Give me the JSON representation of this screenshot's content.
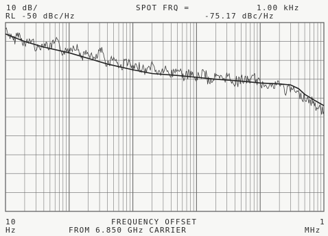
{
  "header": {
    "scale": "10 dB/",
    "marker_label": "SPOT FRQ =",
    "marker_freq": "1.00 kHz",
    "ref_level": "RL -50 dBc/Hz",
    "marker_value": "-75.17 dBc/Hz"
  },
  "footer": {
    "x_start": "10",
    "x_start_unit": "Hz",
    "xlabel_line1": "FREQUENCY OFFSET",
    "xlabel_line2": "FROM 6.850 GHz CARRIER",
    "x_stop": "1",
    "x_stop_unit": "MHz"
  },
  "colors": {
    "trace": "#3a3a3a",
    "grid": "#6a6a6a",
    "background": "#f7f7f5"
  },
  "chart_data": {
    "type": "line",
    "xscale": "log",
    "xlim": [
      10,
      1000000
    ],
    "ylim": [
      -150,
      -50
    ],
    "grid": true,
    "xlabel": "FREQUENCY OFFSET FROM 6.850 GHz CARRIER",
    "ylabel": "dBc/Hz",
    "series": [
      {
        "style": "raw-noisy",
        "x": [
          10,
          13,
          16,
          20,
          25,
          32,
          40,
          50,
          63,
          80,
          100,
          126,
          158,
          200,
          251,
          316,
          398,
          501,
          631,
          794,
          1000,
          1259,
          1585,
          1995,
          2512,
          3162,
          3981,
          5012,
          6310,
          7943,
          10000,
          12589,
          15849,
          19953,
          25119,
          31623,
          39811,
          50119,
          63096,
          79433,
          100000,
          125893,
          158489,
          199526,
          251189,
          316228,
          398107,
          501187,
          630957,
          794328,
          1000000
        ],
        "y": [
          -53,
          -60,
          -56,
          -62,
          -59,
          -64,
          -61,
          -63,
          -60,
          -66,
          -64,
          -62,
          -68,
          -66,
          -70,
          -65,
          -72,
          -68,
          -74,
          -70,
          -75,
          -73,
          -76,
          -72,
          -77,
          -75,
          -78,
          -74,
          -79,
          -77,
          -80,
          -76,
          -81,
          -79,
          -80,
          -78,
          -82,
          -80,
          -81,
          -79,
          -83,
          -82,
          -84,
          -82,
          -86,
          -85,
          -88,
          -90,
          -92,
          -95,
          -97
        ]
      },
      {
        "style": "smoothed",
        "x": [
          10,
          20,
          40,
          100,
          200,
          400,
          1000,
          2000,
          5000,
          10000,
          20000,
          50000,
          100000,
          200000,
          300000,
          400000,
          500000,
          700000,
          1000000
        ],
        "y": [
          -56,
          -60,
          -63,
          -66,
          -69,
          -72,
          -75,
          -77,
          -78,
          -79,
          -80,
          -81,
          -82,
          -82.5,
          -83,
          -85,
          -88,
          -91,
          -94
        ]
      }
    ]
  }
}
